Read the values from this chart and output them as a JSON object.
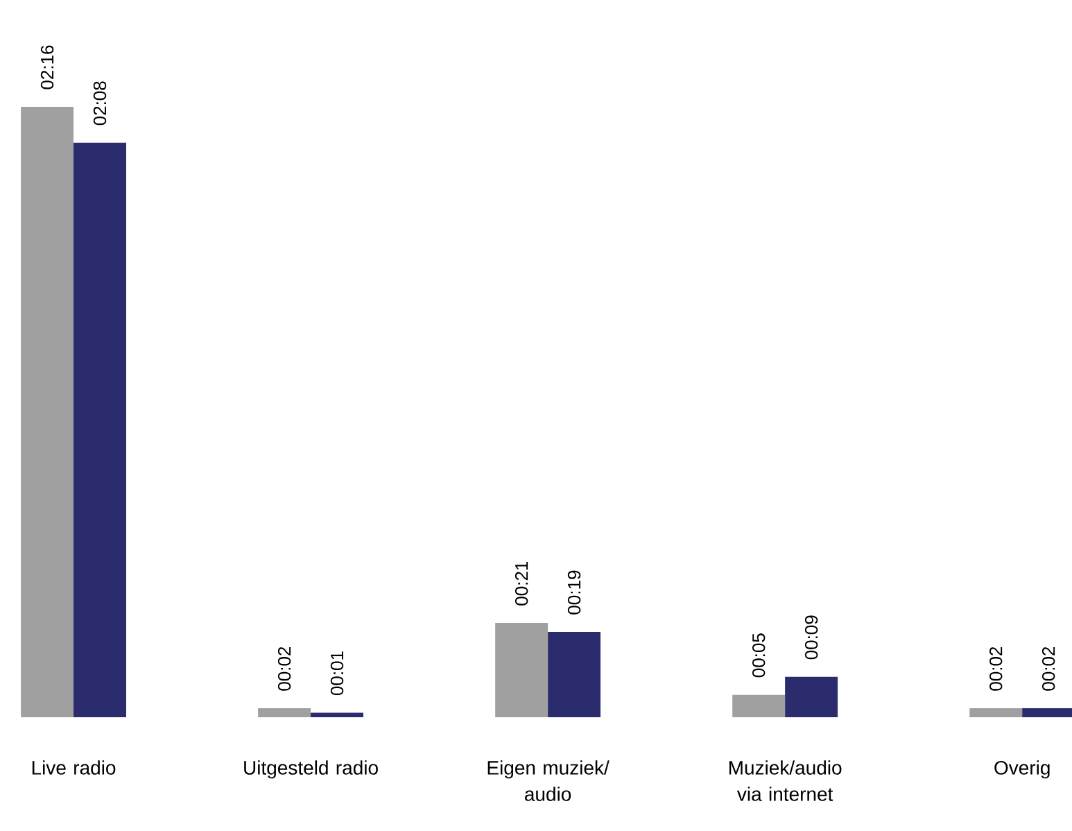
{
  "chart_data": {
    "type": "bar",
    "categories": [
      "Live radio",
      "Uitgesteld radio",
      "Eigen muziek/ audio",
      "Muziek/audio via internet",
      "Overig"
    ],
    "series": [
      {
        "color": "#a0a0a0",
        "values": [
          136,
          2,
          21,
          5,
          2
        ],
        "value_labels": [
          "02:16",
          "00:02",
          "00:21",
          "00:05",
          "00:02"
        ]
      },
      {
        "color": "#2a2c6e",
        "values": [
          128,
          1,
          19,
          9,
          2
        ],
        "value_labels": [
          "02:08",
          "00:01",
          "00:19",
          "00:09",
          "00:02"
        ]
      }
    ]
  }
}
